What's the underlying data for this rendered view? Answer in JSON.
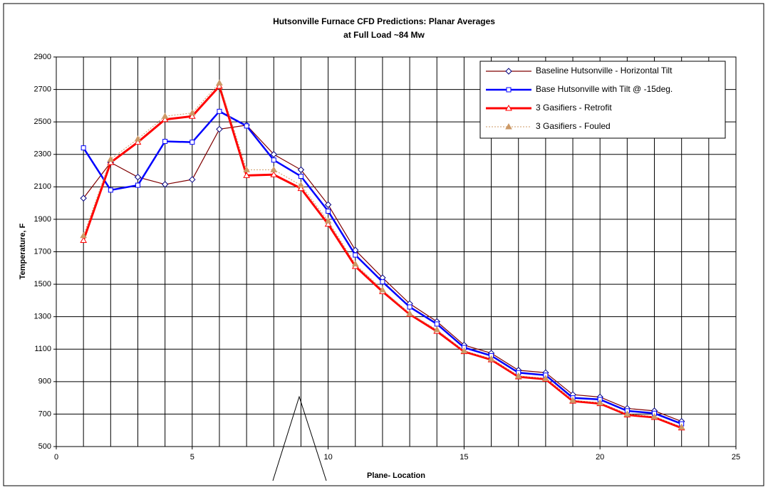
{
  "chart_data": {
    "type": "line",
    "title": [
      "Hutsonville Furnace CFD Predictions:  Planar Averages",
      "at Full Load ~84 Mw"
    ],
    "x_label": "Plane- Location",
    "y_label": "Temperature, F",
    "x": [
      1,
      2,
      3,
      4,
      5,
      6,
      7,
      8,
      9,
      10,
      11,
      12,
      13,
      14,
      15,
      16,
      17,
      18,
      19,
      20,
      21,
      22,
      23
    ],
    "series": [
      {
        "name": "Baseline Hutsonville - Horizontal Tilt",
        "color": "#800000",
        "width": 1.2,
        "dash": "none",
        "marker": "diamond",
        "marker_color": "#000080",
        "marker_fill": "none",
        "values": [
          2030,
          2250,
          2160,
          2115,
          2145,
          2455,
          2480,
          2300,
          2205,
          1990,
          1710,
          1540,
          1380,
          1270,
          1125,
          1075,
          970,
          955,
          820,
          805,
          735,
          720,
          655
        ]
      },
      {
        "name": "Base Hutsonville with Tilt @ -15deg.",
        "color": "#0000ff",
        "width": 2.5,
        "dash": "none",
        "marker": "square",
        "marker_color": "#0000ff",
        "marker_fill": "none",
        "values": [
          2340,
          2080,
          2110,
          2380,
          2375,
          2565,
          2475,
          2265,
          2165,
          1950,
          1680,
          1515,
          1360,
          1255,
          1110,
          1060,
          955,
          940,
          800,
          790,
          720,
          705,
          640
        ]
      },
      {
        "name": "3 Gasifiers - Retrofit",
        "color": "#ff0000",
        "width": 3,
        "dash": "none",
        "marker": "triangle",
        "marker_color": "#ff0000",
        "marker_fill": "none",
        "values": [
          1770,
          2250,
          2375,
          2515,
          2535,
          2720,
          2170,
          2175,
          2090,
          1870,
          1610,
          1455,
          1315,
          1210,
          1085,
          1035,
          930,
          915,
          780,
          765,
          695,
          680,
          615
        ]
      },
      {
        "name": "3 Gasifiers - Fouled",
        "color": "#cc9966",
        "width": 1,
        "dash": "2,2",
        "marker": "triangle",
        "marker_color": "#cc9966",
        "marker_fill": "#cc9966",
        "values": [
          1800,
          2270,
          2395,
          2535,
          2555,
          2740,
          2205,
          2205,
          2110,
          1890,
          1625,
          1465,
          1320,
          1220,
          1090,
          1040,
          935,
          920,
          785,
          770,
          700,
          685,
          620
        ]
      }
    ],
    "xlim": [
      0,
      25
    ],
    "xticks": [
      0,
      5,
      10,
      15,
      20,
      25
    ],
    "x_minor_grid": 1,
    "ylim": [
      500,
      2900
    ],
    "yticks": [
      500,
      700,
      900,
      1100,
      1300,
      1500,
      1700,
      1900,
      2100,
      2300,
      2500,
      2700,
      2900
    ],
    "grid": true,
    "legend": "upper right"
  }
}
